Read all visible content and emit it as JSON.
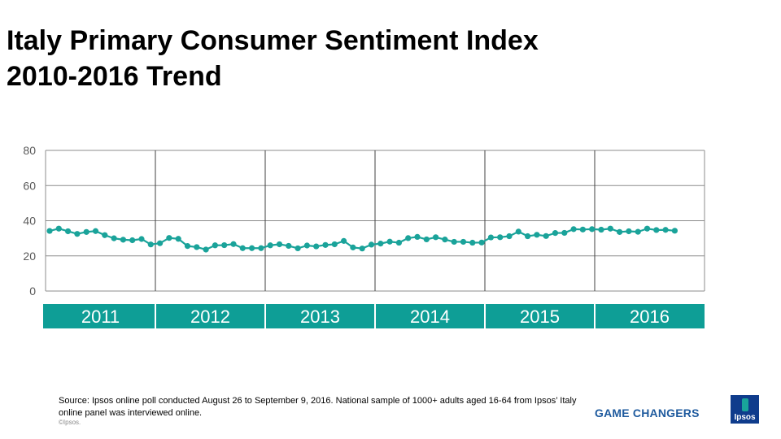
{
  "title": {
    "line1": "Italy Primary Consumer Sentiment Index",
    "line2": "2010-2016 Trend"
  },
  "chart_data": {
    "type": "line",
    "title": "Italy Primary Consumer Sentiment Index 2010-2016 Trend",
    "series": [
      {
        "name": "Primary Consumer Sentiment Index",
        "color": "#1aa39a",
        "values": [
          34.2,
          35.5,
          34.0,
          32.5,
          33.6,
          34.1,
          31.8,
          30.0,
          29.2,
          28.9,
          29.6,
          26.5,
          27.2,
          30.2,
          29.7,
          25.6,
          25.0,
          23.6,
          26.0,
          26.1,
          26.7,
          24.4,
          24.4,
          24.4,
          26.0,
          26.6,
          25.7,
          24.3,
          25.9,
          25.4,
          26.2,
          26.6,
          28.5,
          24.8,
          24.2,
          26.4,
          27.0,
          28.1,
          27.5,
          30.1,
          30.8,
          29.4,
          30.6,
          29.3,
          28.0,
          28.0,
          27.5,
          27.6,
          30.5,
          30.6,
          31.2,
          33.8,
          31.2,
          32.0,
          31.3,
          33.0,
          33.1,
          35.2,
          35.0,
          35.2,
          34.9,
          35.5,
          33.6,
          34.0,
          33.7,
          35.5,
          34.7,
          34.8,
          34.3
        ]
      }
    ],
    "years": [
      "2011",
      "2012",
      "2013",
      "2014",
      "2015",
      "2016"
    ],
    "yticks": [
      0,
      20,
      40,
      60,
      80
    ],
    "ylim": [
      0,
      80
    ],
    "grid": true,
    "xlabel": "",
    "ylabel": ""
  },
  "footer": {
    "source": "Source: Ipsos online poll conducted August 26 to September 9, 2016. National sample of 1000+ adults aged 16-64 from Ipsos’ Italy online panel was interviewed online.",
    "copyright": "©Ipsos.",
    "tagline": "GAME CHANGERS",
    "logo_text": "Ipsos"
  },
  "colors": {
    "accent": "#1aa39a",
    "year_band": "#0e9e96",
    "tagline": "#1e5a9e",
    "logo_bg": "#0f3c8c"
  }
}
